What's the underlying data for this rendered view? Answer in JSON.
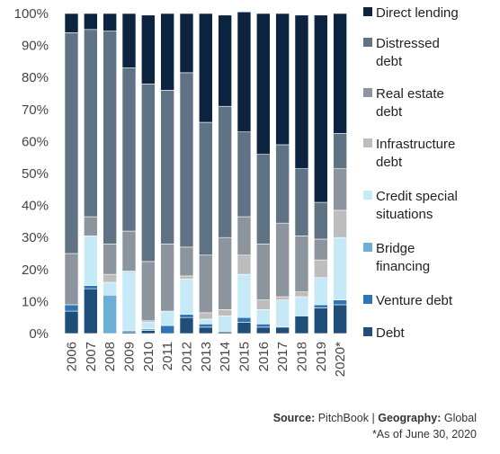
{
  "chart_data": {
    "type": "bar",
    "stacked": true,
    "categories": [
      "2006",
      "2007",
      "2008",
      "2009",
      "2010",
      "2011",
      "2012",
      "2013",
      "2014",
      "2015",
      "2016",
      "2017",
      "2018",
      "2019",
      "2020*"
    ],
    "ylim": [
      0,
      100
    ],
    "yticks": [
      "0%",
      "10%",
      "20%",
      "30%",
      "40%",
      "50%",
      "60%",
      "70%",
      "80%",
      "90%",
      "100%"
    ],
    "xlabel": "",
    "ylabel": "",
    "title": "",
    "legend_position": "right",
    "series": [
      {
        "name": "Debt",
        "color": "#1f4e79",
        "values": [
          7,
          14,
          0,
          0.5,
          1,
          0,
          5,
          2,
          0.5,
          3.5,
          2,
          2,
          5.5,
          8,
          9
        ]
      },
      {
        "name": "Venture debt",
        "color": "#2e75b6",
        "values": [
          2,
          1,
          0,
          0,
          0,
          2.5,
          1,
          1,
          0,
          1.5,
          1,
          0,
          0,
          1,
          1.5
        ]
      },
      {
        "name": "Bridge financing",
        "color": "#6baed6",
        "values": [
          0,
          0,
          12,
          0.5,
          0.5,
          0,
          0,
          0,
          0,
          0,
          0,
          0,
          0,
          0,
          0
        ]
      },
      {
        "name": "Credit special situations",
        "color": "#c6e9f7",
        "values": [
          0,
          15.5,
          4,
          18.5,
          2,
          4.5,
          11,
          1.5,
          5,
          13.5,
          4.5,
          8.5,
          6,
          8.5,
          19.5
        ]
      },
      {
        "name": "Infrastructure debt",
        "color": "#bdbdbd",
        "values": [
          0,
          0,
          2.5,
          0,
          0.5,
          0,
          1,
          2,
          2,
          6,
          3,
          1,
          1.5,
          5.5,
          8.5
        ]
      },
      {
        "name": "Real estate debt",
        "color": "#8c959d",
        "values": [
          16,
          6,
          9.5,
          12.5,
          18.5,
          21,
          9,
          18,
          22.5,
          12,
          17.5,
          23,
          17.5,
          6.5,
          13
        ]
      },
      {
        "name": "Distressed debt",
        "color": "#5f7384",
        "values": [
          69,
          58.5,
          66.5,
          51,
          55.5,
          48,
          54.5,
          41.5,
          41,
          26.5,
          28,
          24.5,
          21,
          11.5,
          11
        ]
      },
      {
        "name": "Direct lending",
        "color": "#0d2440",
        "values": [
          6,
          5,
          5.5,
          17,
          21.5,
          24,
          18.5,
          34,
          28.5,
          37.5,
          44,
          41,
          48,
          58.5,
          37.5
        ]
      }
    ],
    "legend_lines": [
      {
        "series": "Direct lending",
        "lines": [
          "Direct lending"
        ]
      },
      {
        "series": "Distressed debt",
        "lines": [
          "Distressed",
          "debt"
        ]
      },
      {
        "series": "Real estate debt",
        "lines": [
          "Real estate",
          "debt"
        ]
      },
      {
        "series": "Infrastructure debt",
        "lines": [
          "Infrastructure",
          "debt"
        ]
      },
      {
        "series": "Credit special situations",
        "lines": [
          "Credit special",
          "situations"
        ]
      },
      {
        "series": "Bridge financing",
        "lines": [
          "Bridge",
          "financing"
        ]
      },
      {
        "series": "Venture debt",
        "lines": [
          "Venture debt"
        ]
      },
      {
        "series": "Debt",
        "lines": [
          "Debt"
        ]
      }
    ]
  },
  "footer": {
    "source_label": "Source:",
    "source_value": "PitchBook",
    "separator": "|",
    "geography_label": "Geography:",
    "geography_value": "Global",
    "note": "*As of June 30, 2020"
  }
}
